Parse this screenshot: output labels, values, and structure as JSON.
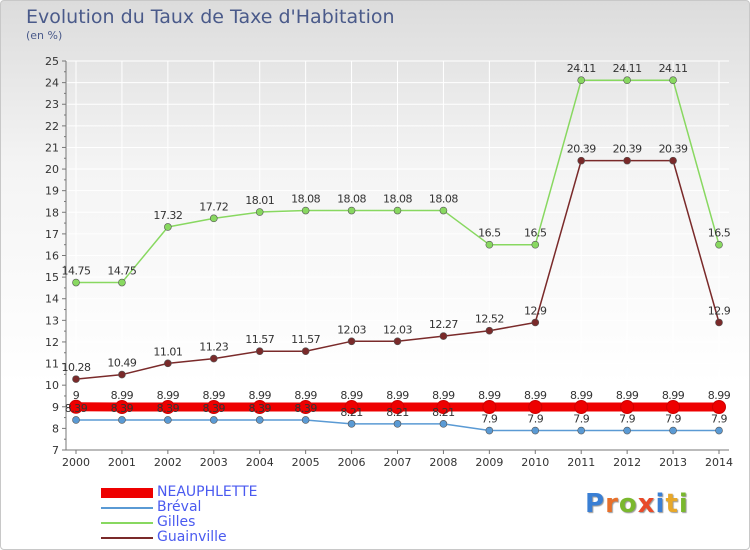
{
  "title": "Evolution du Taux de Taxe d'Habitation",
  "unit": "(en %)",
  "logo_text": "Proxiti",
  "colors": {
    "axis": "#777777",
    "grid": "#ffffff",
    "tick_text": "#333333",
    "legend_text": "#4a5af0"
  },
  "chart_data": {
    "type": "line",
    "title": "Evolution du Taux de Taxe d'Habitation",
    "ylabel": "(en %)",
    "categories": [
      "2000",
      "2001",
      "2002",
      "2003",
      "2004",
      "2005",
      "2006",
      "2007",
      "2008",
      "2009",
      "2010",
      "2011",
      "2012",
      "2013",
      "2014"
    ],
    "ylim": [
      7,
      25
    ],
    "yticks": [
      "7",
      "8",
      "9",
      "10",
      "11",
      "12",
      "13",
      "14",
      "15",
      "16",
      "17",
      "18",
      "19",
      "20",
      "21",
      "22",
      "23",
      "24",
      "25"
    ],
    "grid": true,
    "legend_position": "bottom-left",
    "series": [
      {
        "name": "NEAUPHLETTE",
        "color": "#ee0000",
        "thick": true,
        "values": [
          9,
          8.99,
          8.99,
          8.99,
          8.99,
          8.99,
          8.99,
          8.99,
          8.99,
          8.99,
          8.99,
          8.99,
          8.99,
          8.99,
          8.99
        ],
        "labels": [
          "9",
          "8.99",
          "8.99",
          "8.99",
          "8.99",
          "8.99",
          "8.99",
          "8.99",
          "8.99",
          "8.99",
          "8.99",
          "8.99",
          "8.99",
          "8.99",
          "8.99"
        ]
      },
      {
        "name": "Bréval",
        "color": "#5a9ad4",
        "thick": false,
        "values": [
          8.39,
          8.39,
          8.39,
          8.39,
          8.39,
          8.39,
          8.21,
          8.21,
          8.21,
          7.9,
          7.9,
          7.9,
          7.9,
          7.9,
          7.9
        ],
        "labels": [
          "8.39",
          "8.39",
          "8.39",
          "8.39",
          "8.39",
          "8.39",
          "8.21",
          "8.21",
          "8.21",
          "7.9",
          "7.9",
          "7.9",
          "7.9",
          "7.9",
          "7.9"
        ]
      },
      {
        "name": "Gilles",
        "color": "#88d860",
        "thick": false,
        "values": [
          14.75,
          14.75,
          17.32,
          17.72,
          18.01,
          18.08,
          18.08,
          18.08,
          18.08,
          16.5,
          16.5,
          24.11,
          24.11,
          24.11,
          16.5
        ],
        "labels": [
          "14.75",
          "14.75",
          "17.32",
          "17.72",
          "18.01",
          "18.08",
          "18.08",
          "18.08",
          "18.08",
          "16.5",
          "16.5",
          "24.11",
          "24.11",
          "24.11",
          "16.5"
        ]
      },
      {
        "name": "Guainville",
        "color": "#7a2a2a",
        "thick": false,
        "values": [
          10.28,
          10.49,
          11.01,
          11.23,
          11.57,
          11.57,
          12.03,
          12.03,
          12.27,
          12.52,
          12.9,
          20.39,
          20.39,
          20.39,
          12.9
        ],
        "labels": [
          "10.28",
          "10.49",
          "11.01",
          "11.23",
          "11.57",
          "11.57",
          "12.03",
          "12.03",
          "12.27",
          "12.52",
          "12.9",
          "20.39",
          "20.39",
          "20.39",
          "12.9"
        ]
      }
    ]
  }
}
